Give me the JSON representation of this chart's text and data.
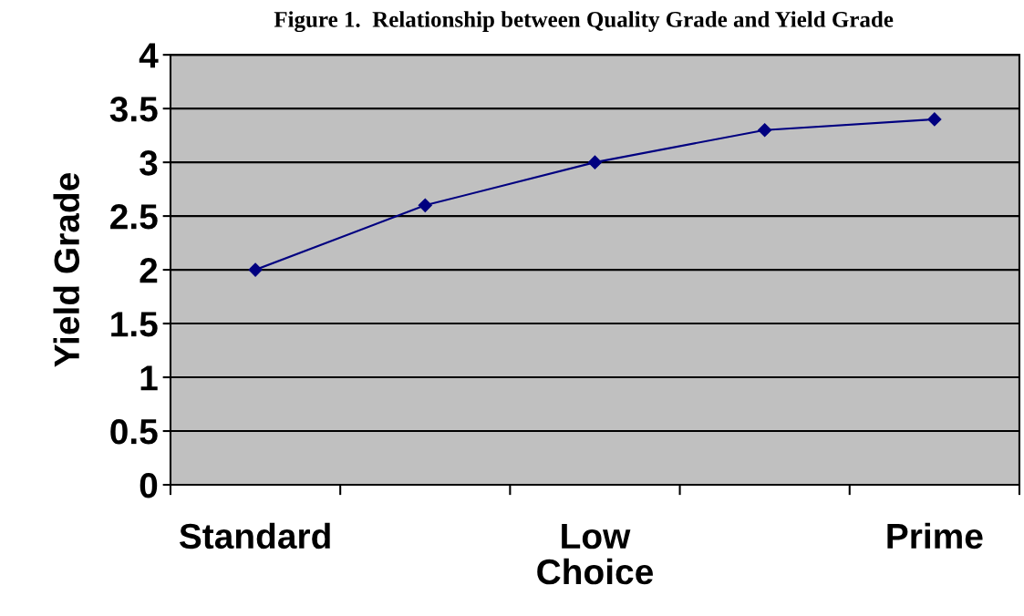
{
  "chart_data": {
    "type": "line",
    "title": "Figure 1.  Relationship between Quality Grade and Yield Grade",
    "ylabel": "Yield Grade",
    "categories": [
      "Standard",
      null,
      "Low Choice",
      null,
      "Prime"
    ],
    "series": [
      {
        "color": "#000080",
        "values": [
          2.0,
          2.6,
          3.0,
          3.3,
          3.4
        ]
      }
    ],
    "ylim": [
      0,
      4
    ],
    "yticks": [
      0,
      0.5,
      1,
      1.5,
      2,
      2.5,
      3,
      3.5,
      4
    ],
    "grid": "y",
    "marker": "diamond",
    "line_style": "solid",
    "legend": false
  }
}
